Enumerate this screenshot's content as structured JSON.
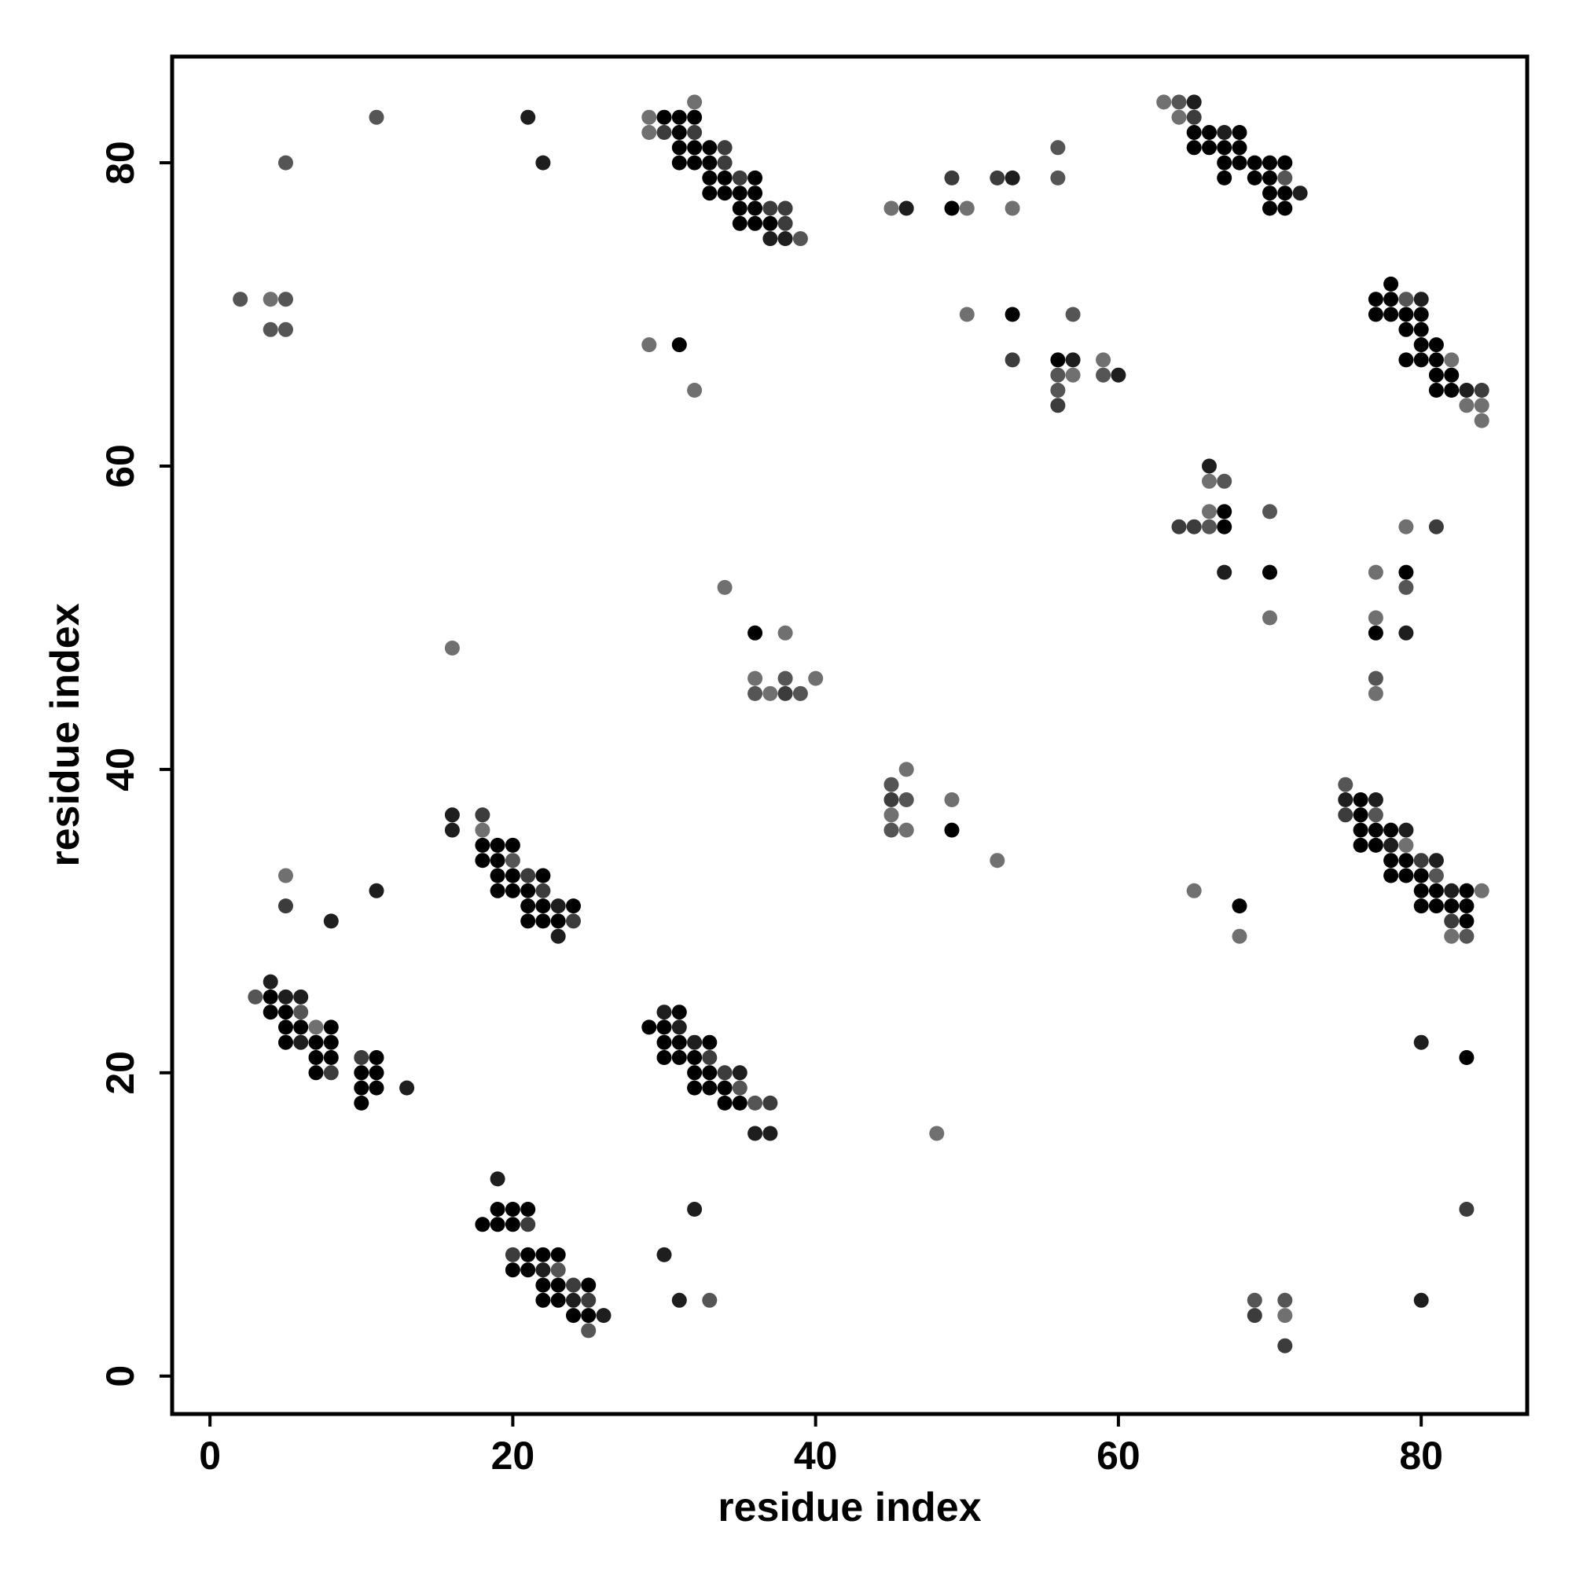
{
  "chart_data": {
    "type": "scatter",
    "title": "",
    "xlabel": "residue index",
    "ylabel": "residue index",
    "xlim": [
      -2.5,
      87
    ],
    "ylim": [
      -2.5,
      87
    ],
    "xticks": [
      0,
      20,
      40,
      60,
      80
    ],
    "yticks": [
      0,
      20,
      40,
      60,
      80
    ],
    "grid": false,
    "legend": "none",
    "shade_colors": {
      "1": "#000000",
      "2": "#1e1e1e",
      "3": "#3c3c3c",
      "4": "#555555",
      "5": "#707070"
    },
    "point_format": "[x, y, shade]",
    "points": [
      [
        2,
        71,
        4
      ],
      [
        4,
        71,
        5
      ],
      [
        5,
        71,
        4
      ],
      [
        4,
        69,
        4
      ],
      [
        5,
        69,
        4
      ],
      [
        5,
        80,
        4
      ],
      [
        11,
        83,
        4
      ],
      [
        21,
        83,
        2
      ],
      [
        22,
        80,
        2
      ],
      [
        29,
        83,
        5
      ],
      [
        30,
        83,
        1
      ],
      [
        31,
        83,
        1
      ],
      [
        32,
        83,
        1
      ],
      [
        32,
        84,
        5
      ],
      [
        29,
        82,
        5
      ],
      [
        30,
        82,
        3
      ],
      [
        31,
        82,
        1
      ],
      [
        32,
        82,
        3
      ],
      [
        31,
        81,
        1
      ],
      [
        32,
        81,
        1
      ],
      [
        33,
        81,
        1
      ],
      [
        31,
        80,
        1
      ],
      [
        32,
        80,
        1
      ],
      [
        33,
        80,
        1
      ],
      [
        34,
        80,
        3
      ],
      [
        33,
        79,
        1
      ],
      [
        34,
        79,
        1
      ],
      [
        35,
        79,
        3
      ],
      [
        34,
        81,
        3
      ],
      [
        33,
        78,
        1
      ],
      [
        34,
        78,
        1
      ],
      [
        35,
        78,
        1
      ],
      [
        36,
        78,
        1
      ],
      [
        35,
        77,
        1
      ],
      [
        36,
        77,
        1
      ],
      [
        37,
        77,
        3
      ],
      [
        38,
        77,
        3
      ],
      [
        35,
        76,
        1
      ],
      [
        36,
        76,
        1
      ],
      [
        37,
        76,
        1
      ],
      [
        38,
        76,
        3
      ],
      [
        37,
        75,
        2
      ],
      [
        38,
        75,
        2
      ],
      [
        39,
        75,
        4
      ],
      [
        36,
        79,
        1
      ],
      [
        45,
        77,
        5
      ],
      [
        46,
        77,
        2
      ],
      [
        49,
        79,
        3
      ],
      [
        49,
        77,
        1
      ],
      [
        50,
        77,
        5
      ],
      [
        52,
        79,
        3
      ],
      [
        53,
        79,
        2
      ],
      [
        53,
        77,
        5
      ],
      [
        56,
        81,
        4
      ],
      [
        56,
        79,
        4
      ],
      [
        63,
        84,
        5
      ],
      [
        64,
        84,
        4
      ],
      [
        65,
        84,
        2
      ],
      [
        64,
        83,
        5
      ],
      [
        65,
        83,
        3
      ],
      [
        65,
        82,
        1
      ],
      [
        66,
        82,
        1
      ],
      [
        67,
        82,
        2
      ],
      [
        68,
        82,
        1
      ],
      [
        65,
        81,
        1
      ],
      [
        66,
        81,
        1
      ],
      [
        67,
        81,
        1
      ],
      [
        68,
        81,
        1
      ],
      [
        67,
        80,
        1
      ],
      [
        68,
        80,
        1
      ],
      [
        69,
        80,
        1
      ],
      [
        70,
        80,
        1
      ],
      [
        71,
        80,
        1
      ],
      [
        67,
        79,
        1
      ],
      [
        69,
        79,
        1
      ],
      [
        70,
        79,
        1
      ],
      [
        71,
        79,
        4
      ],
      [
        70,
        78,
        1
      ],
      [
        71,
        78,
        1
      ],
      [
        72,
        78,
        2
      ],
      [
        70,
        77,
        1
      ],
      [
        71,
        77,
        1
      ],
      [
        29,
        68,
        5
      ],
      [
        31,
        68,
        1
      ],
      [
        32,
        65,
        5
      ],
      [
        50,
        70,
        5
      ],
      [
        53,
        70,
        1
      ],
      [
        53,
        67,
        3
      ],
      [
        57,
        70,
        4
      ],
      [
        56,
        67,
        1
      ],
      [
        57,
        67,
        2
      ],
      [
        56,
        66,
        4
      ],
      [
        57,
        66,
        5
      ],
      [
        56,
        65,
        4
      ],
      [
        56,
        64,
        3
      ],
      [
        59,
        67,
        5
      ],
      [
        59,
        66,
        4
      ],
      [
        60,
        66,
        2
      ],
      [
        78,
        72,
        1
      ],
      [
        77,
        71,
        1
      ],
      [
        78,
        71,
        1
      ],
      [
        79,
        71,
        4
      ],
      [
        80,
        71,
        2
      ],
      [
        77,
        70,
        1
      ],
      [
        78,
        70,
        1
      ],
      [
        79,
        70,
        1
      ],
      [
        80,
        70,
        1
      ],
      [
        79,
        69,
        1
      ],
      [
        80,
        69,
        1
      ],
      [
        80,
        68,
        1
      ],
      [
        81,
        68,
        1
      ],
      [
        79,
        67,
        1
      ],
      [
        80,
        67,
        1
      ],
      [
        81,
        67,
        1
      ],
      [
        82,
        67,
        5
      ],
      [
        81,
        66,
        1
      ],
      [
        82,
        66,
        1
      ],
      [
        81,
        65,
        1
      ],
      [
        82,
        65,
        1
      ],
      [
        83,
        65,
        2
      ],
      [
        84,
        65,
        3
      ],
      [
        83,
        64,
        5
      ],
      [
        84,
        64,
        5
      ],
      [
        84,
        63,
        5
      ],
      [
        66,
        60,
        2
      ],
      [
        66,
        59,
        5
      ],
      [
        67,
        59,
        4
      ],
      [
        64,
        56,
        3
      ],
      [
        65,
        56,
        3
      ],
      [
        66,
        56,
        4
      ],
      [
        66,
        57,
        5
      ],
      [
        67,
        57,
        1
      ],
      [
        67,
        56,
        1
      ],
      [
        67,
        53,
        2
      ],
      [
        70,
        57,
        4
      ],
      [
        70,
        53,
        1
      ],
      [
        70,
        50,
        5
      ],
      [
        79,
        56,
        5
      ],
      [
        81,
        56,
        3
      ],
      [
        77,
        53,
        5
      ],
      [
        79,
        53,
        1
      ],
      [
        79,
        52,
        4
      ],
      [
        77,
        50,
        5
      ],
      [
        77,
        49,
        1
      ],
      [
        79,
        49,
        2
      ],
      [
        77,
        46,
        4
      ],
      [
        77,
        45,
        5
      ],
      [
        34,
        52,
        5
      ],
      [
        36,
        49,
        1
      ],
      [
        38,
        49,
        5
      ],
      [
        36,
        46,
        5
      ],
      [
        38,
        46,
        4
      ],
      [
        40,
        46,
        5
      ],
      [
        36,
        45,
        4
      ],
      [
        37,
        45,
        5
      ],
      [
        38,
        45,
        3
      ],
      [
        39,
        45,
        4
      ],
      [
        16,
        48,
        5
      ],
      [
        45,
        39,
        4
      ],
      [
        46,
        40,
        5
      ],
      [
        45,
        38,
        3
      ],
      [
        46,
        38,
        4
      ],
      [
        45,
        37,
        5
      ],
      [
        45,
        36,
        4
      ],
      [
        46,
        36,
        5
      ],
      [
        49,
        38,
        5
      ],
      [
        49,
        36,
        1
      ],
      [
        52,
        34,
        5
      ],
      [
        75,
        39,
        4
      ],
      [
        75,
        38,
        2
      ],
      [
        76,
        38,
        1
      ],
      [
        77,
        38,
        2
      ],
      [
        75,
        37,
        3
      ],
      [
        76,
        37,
        1
      ],
      [
        77,
        37,
        4
      ],
      [
        76,
        36,
        1
      ],
      [
        77,
        36,
        1
      ],
      [
        78,
        36,
        1
      ],
      [
        79,
        36,
        2
      ],
      [
        76,
        35,
        1
      ],
      [
        77,
        35,
        1
      ],
      [
        78,
        35,
        2
      ],
      [
        79,
        35,
        5
      ],
      [
        78,
        34,
        1
      ],
      [
        79,
        34,
        1
      ],
      [
        80,
        34,
        3
      ],
      [
        81,
        34,
        2
      ],
      [
        78,
        33,
        1
      ],
      [
        79,
        33,
        1
      ],
      [
        80,
        33,
        1
      ],
      [
        81,
        33,
        4
      ],
      [
        80,
        32,
        1
      ],
      [
        81,
        32,
        1
      ],
      [
        82,
        32,
        2
      ],
      [
        83,
        32,
        1
      ],
      [
        84,
        32,
        5
      ],
      [
        80,
        31,
        1
      ],
      [
        81,
        31,
        1
      ],
      [
        82,
        31,
        1
      ],
      [
        83,
        31,
        1
      ],
      [
        82,
        30,
        3
      ],
      [
        83,
        30,
        1
      ],
      [
        82,
        29,
        5
      ],
      [
        83,
        29,
        4
      ],
      [
        65,
        32,
        5
      ],
      [
        68,
        31,
        1
      ],
      [
        68,
        29,
        5
      ],
      [
        16,
        37,
        2
      ],
      [
        16,
        36,
        2
      ],
      [
        18,
        37,
        3
      ],
      [
        18,
        36,
        5
      ],
      [
        18,
        35,
        1
      ],
      [
        19,
        35,
        1
      ],
      [
        20,
        35,
        1
      ],
      [
        18,
        34,
        1
      ],
      [
        19,
        34,
        1
      ],
      [
        20,
        34,
        4
      ],
      [
        19,
        33,
        1
      ],
      [
        20,
        33,
        1
      ],
      [
        21,
        33,
        3
      ],
      [
        22,
        33,
        1
      ],
      [
        19,
        32,
        1
      ],
      [
        20,
        32,
        1
      ],
      [
        21,
        32,
        1
      ],
      [
        22,
        32,
        3
      ],
      [
        21,
        31,
        1
      ],
      [
        22,
        31,
        1
      ],
      [
        23,
        31,
        2
      ],
      [
        24,
        31,
        1
      ],
      [
        21,
        30,
        1
      ],
      [
        22,
        30,
        1
      ],
      [
        23,
        30,
        1
      ],
      [
        24,
        30,
        3
      ],
      [
        23,
        29,
        2
      ],
      [
        5,
        33,
        5
      ],
      [
        5,
        31,
        3
      ],
      [
        8,
        30,
        2
      ],
      [
        11,
        32,
        2
      ],
      [
        4,
        26,
        2
      ],
      [
        3,
        25,
        4
      ],
      [
        4,
        25,
        1
      ],
      [
        5,
        25,
        2
      ],
      [
        6,
        25,
        2
      ],
      [
        4,
        24,
        1
      ],
      [
        5,
        24,
        1
      ],
      [
        6,
        24,
        4
      ],
      [
        5,
        23,
        1
      ],
      [
        6,
        23,
        1
      ],
      [
        7,
        23,
        5
      ],
      [
        8,
        23,
        1
      ],
      [
        5,
        22,
        1
      ],
      [
        6,
        22,
        2
      ],
      [
        7,
        22,
        1
      ],
      [
        8,
        22,
        1
      ],
      [
        7,
        21,
        1
      ],
      [
        8,
        21,
        1
      ],
      [
        7,
        20,
        1
      ],
      [
        8,
        20,
        3
      ],
      [
        10,
        21,
        3
      ],
      [
        11,
        21,
        1
      ],
      [
        10,
        20,
        1
      ],
      [
        11,
        20,
        1
      ],
      [
        10,
        19,
        1
      ],
      [
        11,
        19,
        1
      ],
      [
        13,
        19,
        2
      ],
      [
        10,
        18,
        1
      ],
      [
        30,
        24,
        2
      ],
      [
        31,
        24,
        1
      ],
      [
        29,
        23,
        1
      ],
      [
        30,
        23,
        1
      ],
      [
        31,
        23,
        2
      ],
      [
        30,
        22,
        1
      ],
      [
        31,
        22,
        1
      ],
      [
        32,
        22,
        2
      ],
      [
        33,
        22,
        1
      ],
      [
        30,
        21,
        1
      ],
      [
        31,
        21,
        1
      ],
      [
        32,
        21,
        1
      ],
      [
        33,
        21,
        3
      ],
      [
        32,
        20,
        1
      ],
      [
        33,
        20,
        1
      ],
      [
        34,
        20,
        3
      ],
      [
        35,
        20,
        2
      ],
      [
        32,
        19,
        1
      ],
      [
        33,
        19,
        1
      ],
      [
        34,
        19,
        1
      ],
      [
        35,
        19,
        4
      ],
      [
        34,
        18,
        1
      ],
      [
        35,
        18,
        1
      ],
      [
        36,
        18,
        4
      ],
      [
        37,
        18,
        3
      ],
      [
        36,
        16,
        2
      ],
      [
        37,
        16,
        2
      ],
      [
        48,
        16,
        5
      ],
      [
        80,
        22,
        2
      ],
      [
        83,
        21,
        1
      ],
      [
        19,
        13,
        2
      ],
      [
        18,
        10,
        1
      ],
      [
        19,
        10,
        1
      ],
      [
        20,
        10,
        1
      ],
      [
        21,
        10,
        3
      ],
      [
        19,
        11,
        1
      ],
      [
        20,
        11,
        1
      ],
      [
        21,
        11,
        1
      ],
      [
        20,
        8,
        3
      ],
      [
        21,
        8,
        1
      ],
      [
        22,
        8,
        1
      ],
      [
        23,
        8,
        1
      ],
      [
        20,
        7,
        1
      ],
      [
        21,
        7,
        1
      ],
      [
        22,
        7,
        2
      ],
      [
        23,
        7,
        4
      ],
      [
        22,
        6,
        1
      ],
      [
        23,
        6,
        1
      ],
      [
        24,
        6,
        3
      ],
      [
        25,
        6,
        1
      ],
      [
        22,
        5,
        1
      ],
      [
        23,
        5,
        1
      ],
      [
        24,
        5,
        2
      ],
      [
        25,
        5,
        3
      ],
      [
        24,
        4,
        1
      ],
      [
        25,
        4,
        1
      ],
      [
        26,
        4,
        2
      ],
      [
        25,
        3,
        4
      ],
      [
        30,
        8,
        2
      ],
      [
        31,
        5,
        2
      ],
      [
        32,
        11,
        2
      ],
      [
        33,
        5,
        4
      ],
      [
        69,
        5,
        4
      ],
      [
        71,
        5,
        4
      ],
      [
        69,
        4,
        3
      ],
      [
        71,
        4,
        5
      ],
      [
        71,
        2,
        3
      ],
      [
        80,
        5,
        2
      ],
      [
        83,
        11,
        3
      ]
    ]
  }
}
